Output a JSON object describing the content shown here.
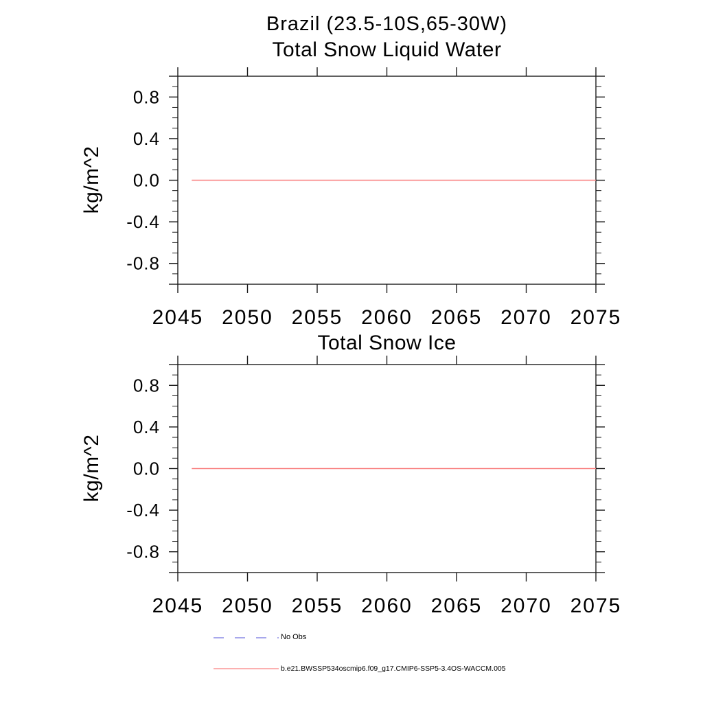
{
  "page": {
    "main_title": "Brazil (23.5-10S,65-30W)"
  },
  "chart_data": [
    {
      "type": "line",
      "title": "Total Snow Liquid Water",
      "xlabel": "",
      "ylabel": "kg/m^2",
      "xlim": [
        2045,
        2075
      ],
      "ylim": [
        -1.0,
        1.0
      ],
      "x_ticks": [
        2045,
        2050,
        2055,
        2060,
        2065,
        2070,
        2075
      ],
      "x_tick_labels": [
        "2045",
        "2050",
        "2055",
        "2060",
        "2065",
        "2070",
        "2075"
      ],
      "y_ticks": [
        -0.8,
        -0.4,
        0.0,
        0.4,
        0.8
      ],
      "y_tick_labels": [
        "-0.8",
        "-0.4",
        "0.0",
        "0.4",
        "0.8"
      ],
      "y_minor_tick_step": 0.1,
      "grid": false,
      "legend_position": "below",
      "series": [
        {
          "name": "b.e21.BWSSP534oscmip6.f09_g17.CMIP6-SSP5-3.4OS-WACCM.005",
          "color": "#f98080",
          "x": [
            2046,
            2075
          ],
          "y": [
            0.0,
            0.0
          ]
        }
      ]
    },
    {
      "type": "line",
      "title": "Total Snow Ice",
      "xlabel": "",
      "ylabel": "kg/m^2",
      "xlim": [
        2045,
        2075
      ],
      "ylim": [
        -1.0,
        1.0
      ],
      "x_ticks": [
        2045,
        2050,
        2055,
        2060,
        2065,
        2070,
        2075
      ],
      "x_tick_labels": [
        "2045",
        "2050",
        "2055",
        "2060",
        "2065",
        "2070",
        "2075"
      ],
      "y_ticks": [
        -0.8,
        -0.4,
        0.0,
        0.4,
        0.8
      ],
      "y_tick_labels": [
        "-0.8",
        "-0.4",
        "0.0",
        "0.4",
        "0.8"
      ],
      "y_minor_tick_step": 0.1,
      "grid": false,
      "legend_position": "below",
      "series": [
        {
          "name": "b.e21.BWSSP534oscmip6.f09_g17.CMIP6-SSP5-3.4OS-WACCM.005",
          "color": "#f98080",
          "x": [
            2046,
            2075
          ],
          "y": [
            0.0,
            0.0
          ]
        }
      ]
    }
  ],
  "legend": {
    "entries": [
      {
        "label": "No Obs",
        "color": "#7373e1",
        "style": "dashed"
      },
      {
        "label": "b.e21.BWSSP534oscmip6.f09_g17.CMIP6-SSP5-3.4OS-WACCM.005",
        "color": "#f98080",
        "style": "solid"
      }
    ]
  },
  "colors": {
    "axis": "#1c1c1c",
    "text": "#000000"
  }
}
